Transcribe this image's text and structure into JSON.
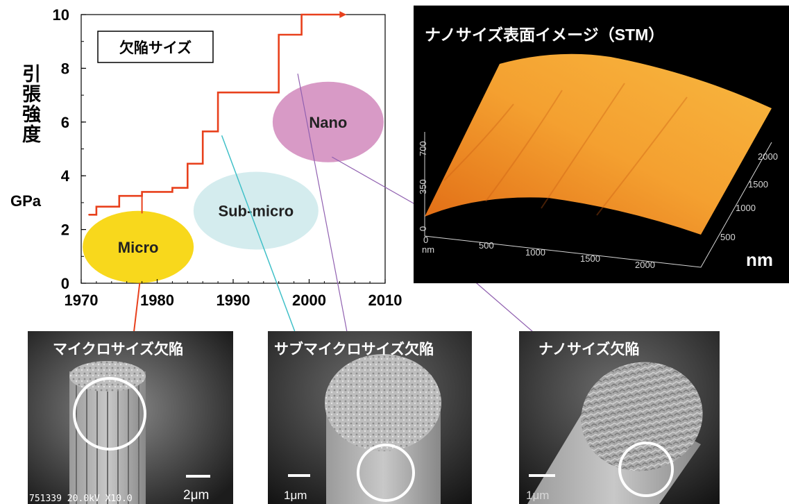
{
  "chart_data": {
    "type": "line",
    "xlabel": "",
    "ylabel": "引張強度",
    "yunit": "GPa",
    "xlim": [
      1970,
      2010
    ],
    "ylim": [
      0,
      10
    ],
    "x_ticks": [
      "1970",
      "1980",
      "1990",
      "2000",
      "2010"
    ],
    "y_ticks": [
      "0",
      "2",
      "4",
      "6",
      "8",
      "10"
    ],
    "legend_box": "欠陥サイズ",
    "series": [
      {
        "color": "#e8401c",
        "x": [
          1971,
          1972,
          1972,
          1975,
          1975,
          1978,
          1978,
          1982,
          1982,
          1984,
          1984,
          1986,
          1986,
          1988,
          1988,
          1996,
          1996,
          1999,
          1999,
          2004
        ],
        "y": [
          2.55,
          2.55,
          2.85,
          2.85,
          3.25,
          3.25,
          3.4,
          3.4,
          3.55,
          3.55,
          4.45,
          4.45,
          5.65,
          5.65,
          7.1,
          7.1,
          9.25,
          9.25,
          10.0,
          10.0
        ]
      }
    ],
    "regions": [
      {
        "label": "Micro",
        "color": "#f8d81c",
        "x": 1977.5,
        "y": 1.35
      },
      {
        "label": "Sub-micro",
        "color": "#d4ecee",
        "x": 1993,
        "y": 2.7
      },
      {
        "label": "Nano",
        "color": "#d89ac6",
        "x": 2002.5,
        "y": 6.0
      }
    ]
  },
  "stm_panel": {
    "title": "ナノサイズ表面イメージ（STM）",
    "unit": "nm",
    "z_ticks": [
      "0",
      "350",
      "700"
    ],
    "x_ticks": [
      "0",
      "500",
      "1000",
      "1500",
      "2000"
    ],
    "x_unit_small": "nm",
    "y_ticks": [
      "500",
      "1000",
      "1500",
      "2000"
    ]
  },
  "sem_images": [
    {
      "title": "マイクロサイズ欠陥",
      "scale": "2μm",
      "footer": "751339 20.0kV X10.0"
    },
    {
      "title": "サブマイクロサイズ欠陥",
      "scale": "1μm"
    },
    {
      "title": "ナノサイズ欠陥",
      "scale": "1μm"
    }
  ],
  "colors": {
    "line": "#e8401c",
    "sub_connector": "#40c0c8",
    "nano_connector": "#9060b0",
    "stm_surface": "#f0a030"
  }
}
